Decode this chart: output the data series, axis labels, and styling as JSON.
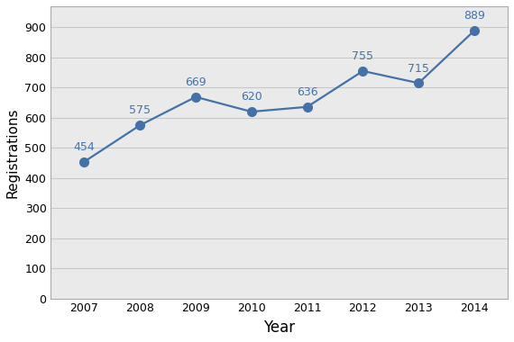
{
  "years": [
    2007,
    2008,
    2009,
    2010,
    2011,
    2012,
    2013,
    2014
  ],
  "values": [
    454,
    575,
    669,
    620,
    636,
    755,
    715,
    889
  ],
  "line_color": "#4472A8",
  "marker_color": "#4472A8",
  "annotation_color": "#4472A8",
  "xlabel": "Year",
  "ylabel": "Registrations",
  "xlim": [
    2006.4,
    2014.6
  ],
  "ylim": [
    0,
    970
  ],
  "yticks": [
    0,
    100,
    200,
    300,
    400,
    500,
    600,
    700,
    800,
    900
  ],
  "grid_color": "#C8C8C8",
  "figure_bg_color": "#FFFFFF",
  "plot_bg_color": "#EAEAEA",
  "xlabel_fontsize": 12,
  "ylabel_fontsize": 11,
  "annotation_fontsize": 9,
  "tick_fontsize": 9,
  "marker_size": 7,
  "line_width": 1.6,
  "spine_color": "#AAAAAA"
}
